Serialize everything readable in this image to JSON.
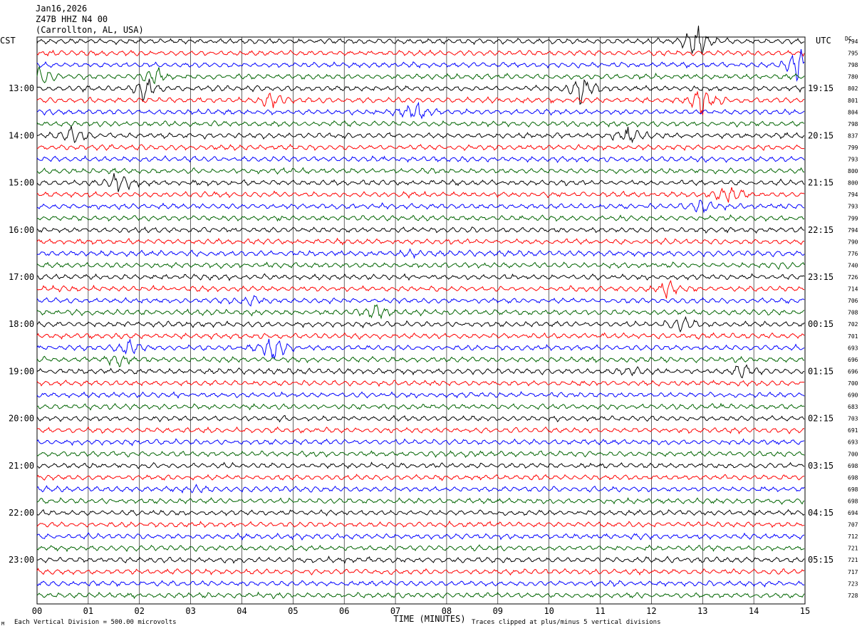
{
  "header": {
    "date": "Jan16,2026",
    "station": "Z47B HHZ N4 00",
    "location": "(Carrollton, AL, USA)"
  },
  "left_tz": "CST",
  "right_tz": "UTC",
  "dc_label": "DC",
  "footer": {
    "scale": "Each Vertical Division =  500.00 microvolts",
    "clip": "Traces clipped at plus/minus 5 vertical divisions",
    "corner": "M"
  },
  "colors": {
    "black": "#000000",
    "red": "#ff0000",
    "blue": "#0000ff",
    "green": "#006400",
    "grid": "#000000"
  },
  "chart_data": {
    "type": "line",
    "title": "Z47B HHZ N4 00",
    "xlabel": "TIME (MINUTES)",
    "xlim": [
      0,
      15
    ],
    "x_ticks": [
      "00",
      "01",
      "02",
      "03",
      "04",
      "05",
      "06",
      "07",
      "08",
      "09",
      "10",
      "11",
      "12",
      "13",
      "14",
      "15"
    ],
    "trace_color_cycle": [
      "black",
      "red",
      "blue",
      "green"
    ],
    "left_hour_labels": [
      "13:00",
      "14:00",
      "15:00",
      "16:00",
      "17:00",
      "18:00",
      "19:00",
      "20:00",
      "21:00",
      "22:00",
      "23:00"
    ],
    "right_hour_labels": [
      "19:15",
      "20:15",
      "21:15",
      "22:15",
      "23:15",
      "00:15",
      "01:15",
      "02:15",
      "03:15",
      "04:15",
      "05:15"
    ],
    "dc_offsets": [
      794,
      795,
      798,
      780,
      802,
      801,
      804,
      798,
      837,
      799,
      793,
      800,
      800,
      794,
      793,
      799,
      794,
      790,
      776,
      740,
      726,
      714,
      706,
      708,
      702,
      701,
      693,
      696,
      696,
      700,
      690,
      683,
      703,
      691,
      693,
      700,
      698,
      698,
      698,
      698,
      694,
      707,
      712,
      721,
      721,
      717,
      723,
      728
    ],
    "events": [
      {
        "trace": 0,
        "minute": 12.9,
        "amplitude": 5
      },
      {
        "trace": 2,
        "minute": 14.9,
        "amplitude": 5
      },
      {
        "trace": 3,
        "minute": 0.0,
        "amplitude": 4
      },
      {
        "trace": 3,
        "minute": 2.3,
        "amplitude": 3
      },
      {
        "trace": 4,
        "minute": 2.1,
        "amplitude": 4
      },
      {
        "trace": 4,
        "minute": 10.6,
        "amplitude": 5
      },
      {
        "trace": 5,
        "minute": 4.6,
        "amplitude": 3
      },
      {
        "trace": 5,
        "minute": 13.0,
        "amplitude": 4
      },
      {
        "trace": 6,
        "minute": 7.4,
        "amplitude": 3
      },
      {
        "trace": 8,
        "minute": 0.7,
        "amplitude": 3
      },
      {
        "trace": 8,
        "minute": 11.6,
        "amplitude": 3
      },
      {
        "trace": 12,
        "minute": 1.6,
        "amplitude": 3
      },
      {
        "trace": 13,
        "minute": 13.5,
        "amplitude": 3
      },
      {
        "trace": 14,
        "minute": 13.0,
        "amplitude": 2
      },
      {
        "trace": 18,
        "minute": 7.4,
        "amplitude": 1
      },
      {
        "trace": 19,
        "minute": 14.5,
        "amplitude": 1
      },
      {
        "trace": 21,
        "minute": 12.3,
        "amplitude": 2
      },
      {
        "trace": 22,
        "minute": 4.2,
        "amplitude": 1
      },
      {
        "trace": 23,
        "minute": 6.6,
        "amplitude": 2
      },
      {
        "trace": 24,
        "minute": 12.6,
        "amplitude": 2
      },
      {
        "trace": 26,
        "minute": 1.8,
        "amplitude": 2
      },
      {
        "trace": 26,
        "minute": 4.6,
        "amplitude": 4
      },
      {
        "trace": 27,
        "minute": 1.6,
        "amplitude": 2
      },
      {
        "trace": 28,
        "minute": 13.8,
        "amplitude": 2
      },
      {
        "trace": 28,
        "minute": 11.6,
        "amplitude": 1
      },
      {
        "trace": 38,
        "minute": 3.1,
        "amplitude": 1
      }
    ]
  }
}
